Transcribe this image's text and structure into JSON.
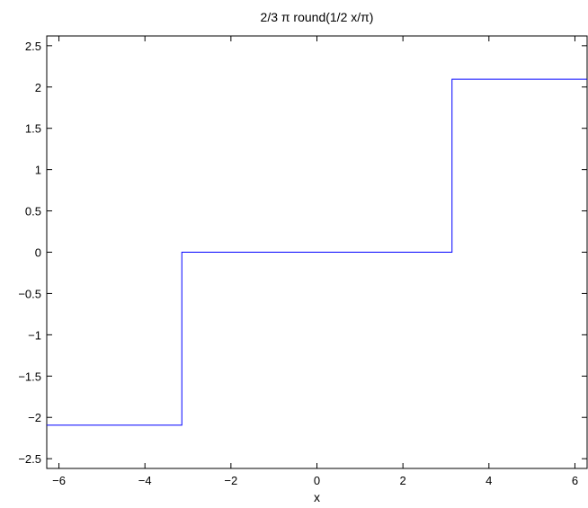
{
  "chart_data": {
    "type": "line",
    "title": "2/3 π round(1/2 x/π)",
    "xlabel": "x",
    "ylabel": "",
    "xlim": [
      -6.2832,
      6.2832
    ],
    "ylim": [
      -2.618,
      2.618
    ],
    "grid": false,
    "x_ticks": [
      -6,
      -4,
      -2,
      0,
      2,
      4,
      6
    ],
    "x_tick_labels": [
      "−6",
      "−4",
      "−2",
      "0",
      "2",
      "4",
      "6"
    ],
    "y_ticks": [
      -2.5,
      -2,
      -1.5,
      -1,
      -0.5,
      0,
      0.5,
      1,
      1.5,
      2,
      2.5
    ],
    "y_tick_labels": [
      "−2.5",
      "−2",
      "−1.5",
      "−1",
      "−0.5",
      "0",
      "0.5",
      "1",
      "1.5",
      "2",
      "2.5"
    ],
    "series": [
      {
        "color": "#0000ff",
        "x": [
          -6.2832,
          -3.1416,
          -3.1416,
          3.1416,
          3.1416,
          6.2832
        ],
        "y": [
          -2.0944,
          -2.0944,
          0,
          0,
          2.0944,
          2.0944
        ]
      }
    ]
  }
}
